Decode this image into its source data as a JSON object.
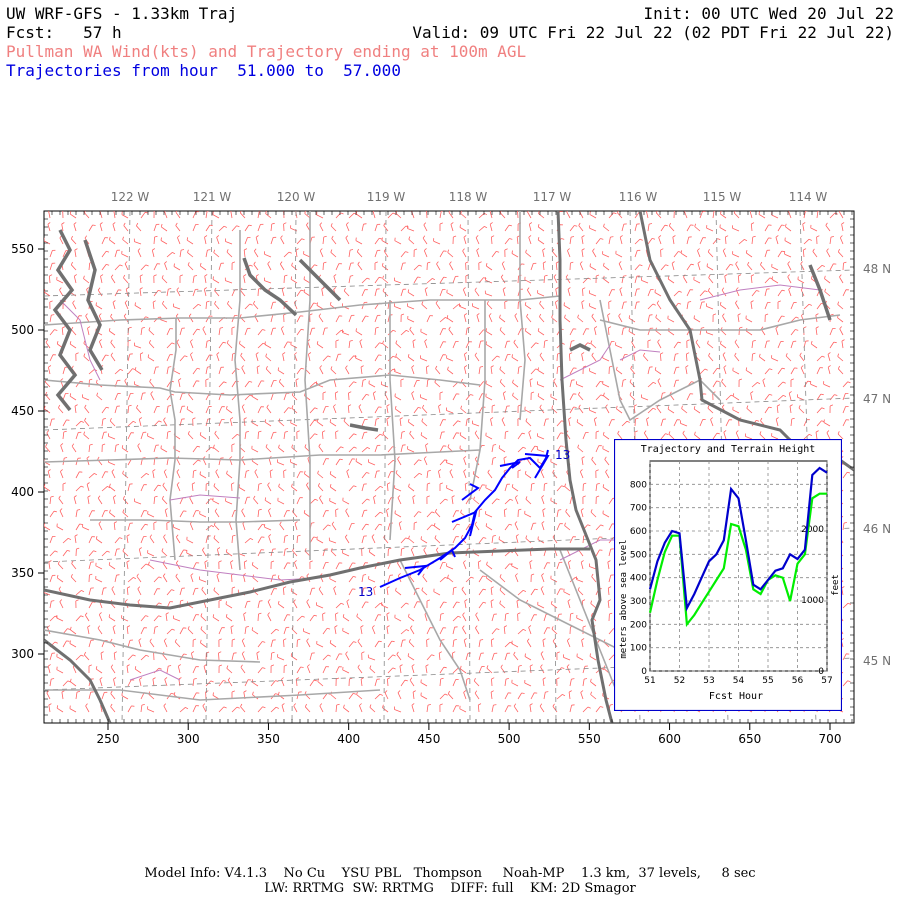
{
  "header": {
    "model_title": "UW WRF-GFS - 1.33km Traj",
    "init": "Init: 00 UTC Wed 20 Jul 22",
    "fcst": "Fcst:   57 h",
    "valid": "Valid: 09 UTC Fri 22 Jul 22 (02 PDT Fri 22 Jul 22)",
    "product": "Pullman WA Wind(kts) and Trajectory ending at 100m AGL",
    "traj_range": "Trajectories from hour  51.000 to  57.000"
  },
  "map": {
    "lon_labels": [
      "122 W",
      "121 W",
      "120 W",
      "119 W",
      "118 W",
      "117 W",
      "116 W",
      "115 W",
      "114 W"
    ],
    "lat_labels": [
      "48 N",
      "47 N",
      "46 N",
      "45 N"
    ],
    "x_ticks": [
      "250",
      "300",
      "350",
      "400",
      "450",
      "500",
      "550",
      "600",
      "650",
      "700"
    ],
    "y_ticks": [
      "550",
      "500",
      "450",
      "400",
      "350",
      "300"
    ],
    "traj_start_label": "13",
    "traj_end_label": "13",
    "colors": {
      "wind_barbs": "#ff6060",
      "trajectory": "#0000ff",
      "state_border": "#707070",
      "county_border": "#a8a8a8",
      "water": "#c080c0",
      "grid": "#808080"
    }
  },
  "inset": {
    "title": "Trajectory and Terrain Height",
    "ylabel_left": "meters above sea level",
    "ylabel_right": "feet",
    "xlabel": "Fcst Hour",
    "chart_data": {
      "type": "line",
      "x": [
        51.0,
        51.25,
        51.5,
        51.75,
        52.0,
        52.25,
        52.5,
        52.75,
        53.0,
        53.25,
        53.5,
        53.75,
        54.0,
        54.25,
        54.5,
        54.75,
        55.0,
        55.25,
        55.5,
        55.75,
        56.0,
        56.25,
        56.5,
        56.75,
        57.0
      ],
      "series": [
        {
          "name": "trajectory",
          "color": "#0000cc",
          "values": [
            350,
            470,
            550,
            600,
            590,
            270,
            330,
            400,
            470,
            500,
            560,
            780,
            740,
            560,
            370,
            350,
            390,
            430,
            440,
            500,
            480,
            520,
            840,
            870,
            850
          ]
        },
        {
          "name": "terrain",
          "color": "#00ee00",
          "values": [
            250,
            390,
            510,
            580,
            580,
            200,
            240,
            290,
            340,
            390,
            440,
            630,
            620,
            520,
            350,
            330,
            390,
            410,
            400,
            300,
            460,
            500,
            740,
            760,
            760
          ]
        }
      ],
      "xticks": [
        "51",
        "52",
        "53",
        "54",
        "55",
        "56",
        "57"
      ],
      "yticks_left": [
        "0",
        "100",
        "200",
        "300",
        "400",
        "500",
        "600",
        "700",
        "800"
      ],
      "yticks_right": [
        "0",
        "1000",
        "2000"
      ],
      "xlim": [
        51,
        57
      ],
      "ylim": [
        0,
        900
      ],
      "grid": true
    }
  },
  "footer": {
    "line1": "Model Info: V4.1.3    No Cu    YSU PBL   Thompson     Noah-MP    1.3 km,  37 levels,     8 sec",
    "line2": "LW: RRTMG  SW: RRTMG    DIFF: full    KM: 2D Smagor"
  }
}
